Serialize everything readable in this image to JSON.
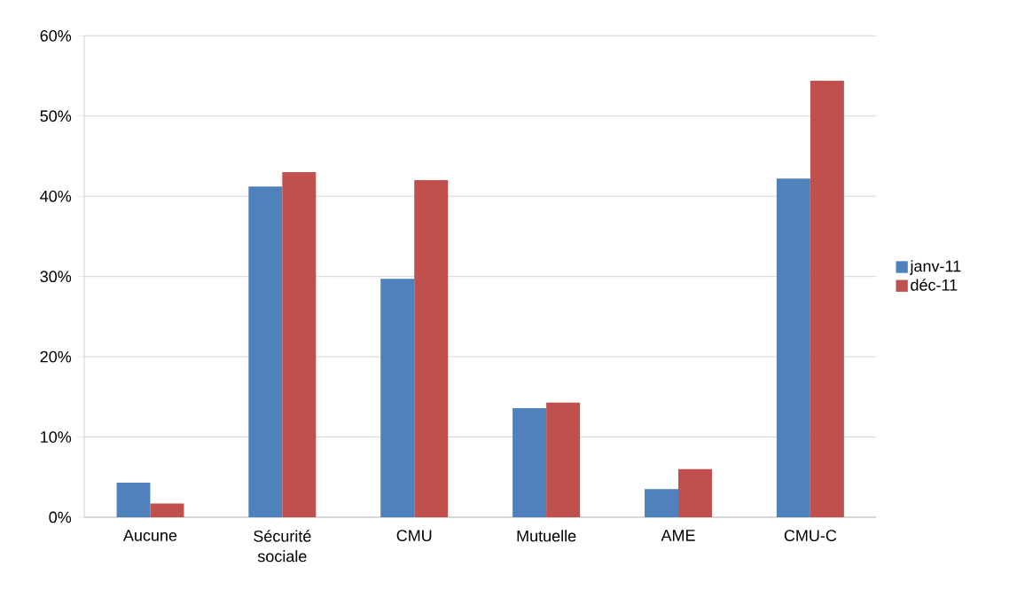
{
  "chart_data": {
    "type": "bar",
    "categories": [
      "Aucune",
      "Sécurité sociale",
      "CMU",
      "Mutuelle",
      "AME",
      "CMU-C"
    ],
    "series": [
      {
        "name": "janv-11",
        "color": "#4f81bd",
        "values": [
          4.3,
          41.2,
          29.7,
          13.6,
          3.5,
          42.2
        ]
      },
      {
        "name": "déc-11",
        "color": "#c0504d",
        "values": [
          1.7,
          43.0,
          42.0,
          14.3,
          6.0,
          54.4
        ]
      }
    ],
    "ylim": [
      0,
      60
    ],
    "yticks": [
      {
        "value": 0,
        "label": "0%"
      },
      {
        "value": 10,
        "label": "10%"
      },
      {
        "value": 20,
        "label": "20%"
      },
      {
        "value": 30,
        "label": "30%"
      },
      {
        "value": 40,
        "label": "40%"
      },
      {
        "value": 50,
        "label": "50%"
      },
      {
        "value": 60,
        "label": "60%"
      }
    ],
    "grid": "y",
    "legend": "right"
  }
}
